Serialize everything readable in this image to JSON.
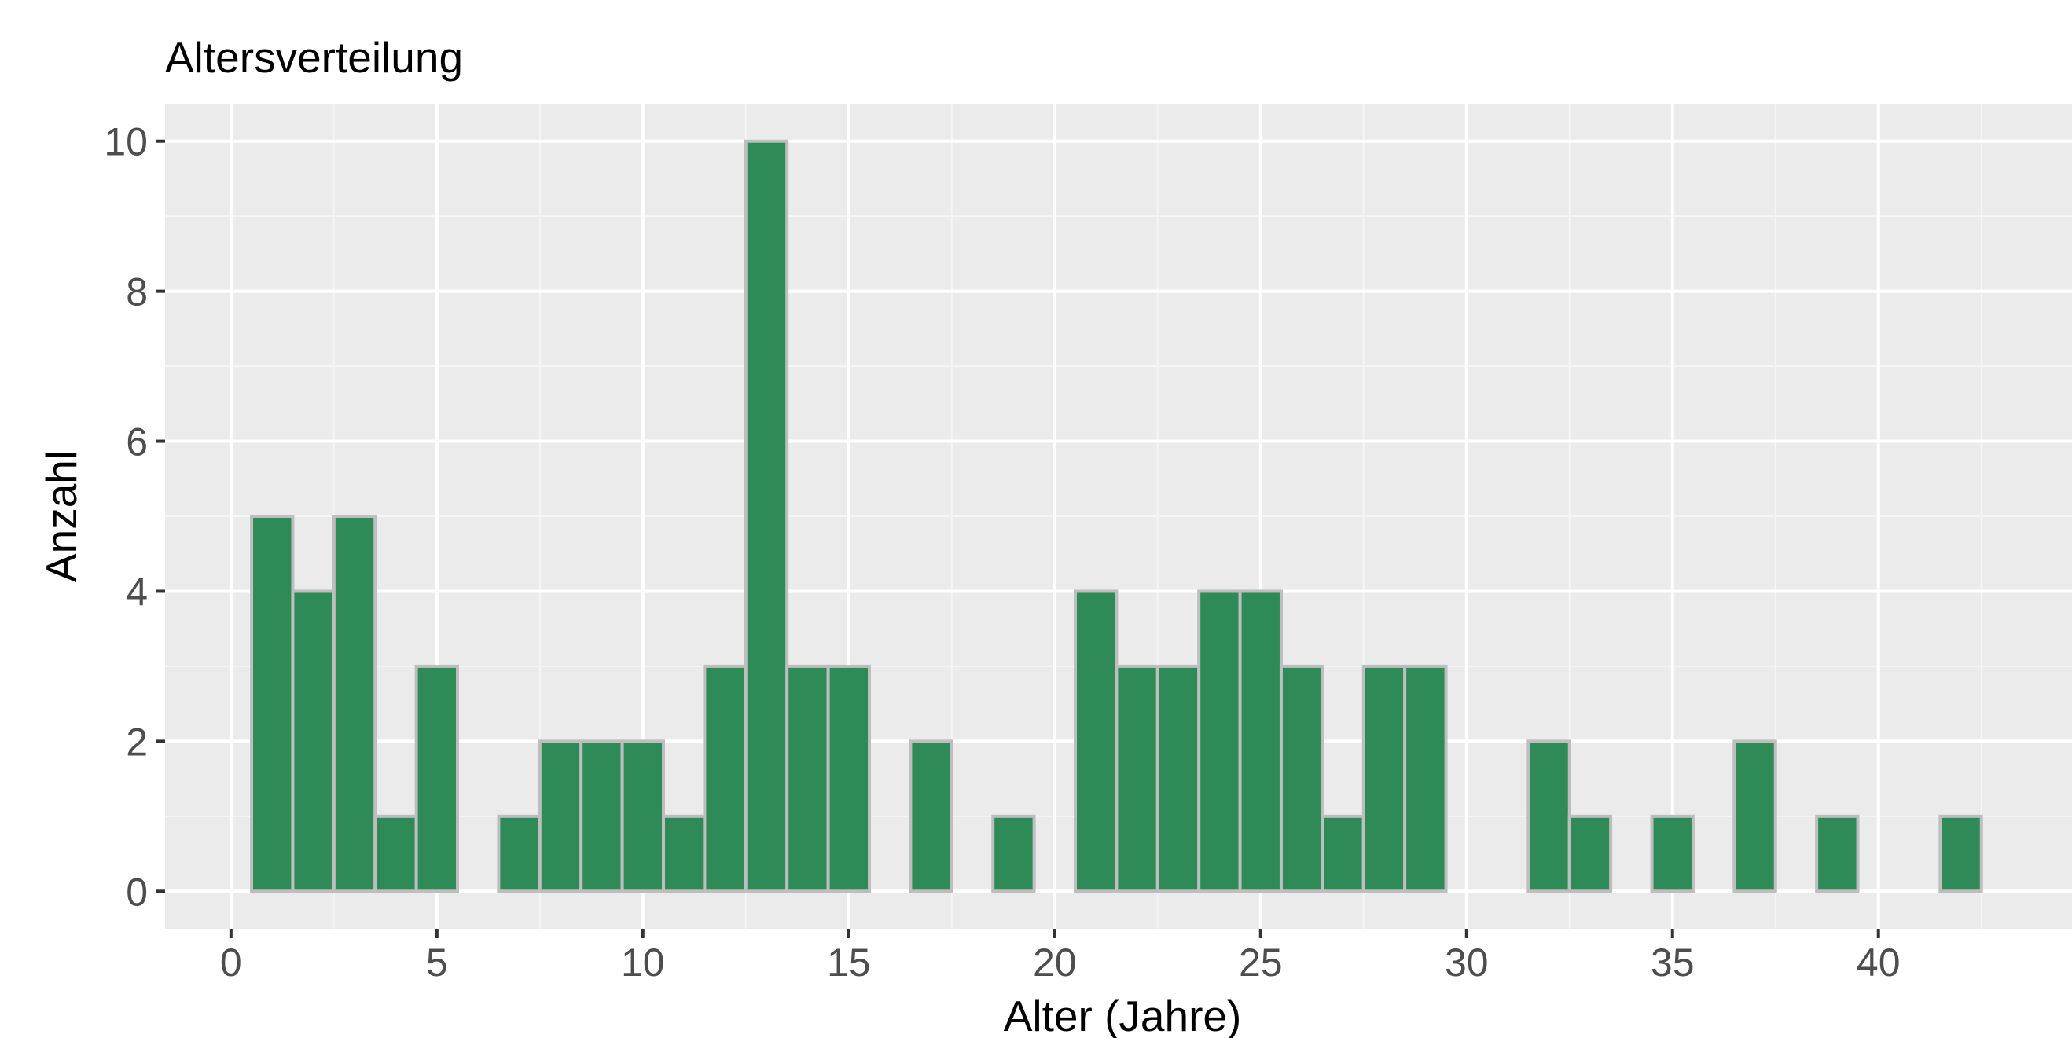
{
  "chart_data": {
    "type": "bar",
    "title": "Altersverteilung",
    "xlabel": "Alter (Jahre)",
    "ylabel": "Anzahl",
    "xlim": [
      -1.6,
      44.7
    ],
    "ylim": [
      -0.5,
      10.5
    ],
    "x_ticks": [
      0,
      5,
      10,
      15,
      20,
      25,
      30,
      35,
      40
    ],
    "y_ticks": [
      0,
      2,
      4,
      6,
      8,
      10
    ],
    "bin_width": 1,
    "grid": true,
    "x": [
      1,
      2,
      3,
      4,
      5,
      6,
      7,
      8,
      9,
      10,
      11,
      12,
      13,
      14,
      15,
      16,
      17,
      18,
      19,
      20,
      21,
      22,
      23,
      24,
      25,
      26,
      27,
      28,
      29,
      30,
      31,
      32,
      33,
      34,
      35,
      36,
      37,
      38,
      39,
      40,
      41,
      42
    ],
    "values": [
      5,
      4,
      5,
      1,
      3,
      0,
      1,
      2,
      2,
      2,
      1,
      3,
      10,
      3,
      3,
      0,
      2,
      0,
      1,
      0,
      4,
      3,
      3,
      4,
      4,
      3,
      1,
      3,
      3,
      0,
      0,
      2,
      1,
      0,
      1,
      0,
      2,
      0,
      1,
      0,
      0,
      1
    ]
  },
  "colors": {
    "bar_fill": "#2e8b57",
    "bar_outline": "#bebebe",
    "panel_background": "#ebebeb",
    "grid_major": "#ffffff",
    "grid_minor": "#f5f5f5",
    "tick_text": "#4d4d4d",
    "title_text": "#000000"
  }
}
